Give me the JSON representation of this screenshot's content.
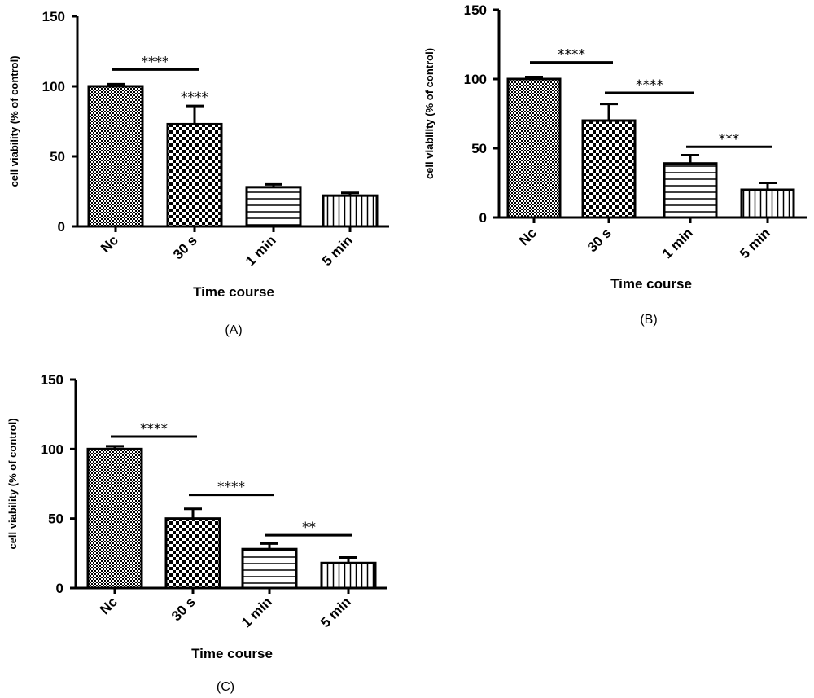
{
  "chart_data": [
    {
      "type": "bar",
      "panel": "(A)",
      "xlabel": "Time course",
      "ylabel": "cell viability (% of control)",
      "ylim": [
        0,
        150
      ],
      "yticks": [
        0,
        50,
        100,
        150
      ],
      "categories": [
        "Nc",
        "30 s",
        "1 min",
        "5 min"
      ],
      "values": [
        100,
        73,
        28,
        22
      ],
      "errors": [
        1.5,
        13,
        2,
        2
      ],
      "patterns": [
        "fine-check",
        "checker",
        "horizontal",
        "vertical"
      ],
      "significance": [
        {
          "text": "****",
          "from": 0,
          "to": 1,
          "y": 112
        },
        {
          "text": "****",
          "bar": 1,
          "y": 90
        }
      ]
    },
    {
      "type": "bar",
      "panel": "(B)",
      "xlabel": "Time course",
      "ylabel": "cell viability (% of control)",
      "ylim": [
        0,
        150
      ],
      "yticks": [
        0,
        50,
        100,
        150
      ],
      "categories": [
        "Nc",
        "30 s",
        "1 min",
        "5 min"
      ],
      "values": [
        100,
        70,
        39,
        20
      ],
      "errors": [
        1.5,
        12,
        6,
        5
      ],
      "patterns": [
        "fine-check",
        "checker",
        "horizontal",
        "vertical"
      ],
      "significance": [
        {
          "text": "****",
          "from": 0,
          "to": 1,
          "y": 112
        },
        {
          "text": "****",
          "from": 1,
          "to": 2,
          "y": 90
        },
        {
          "text": "***",
          "from": 2,
          "to": 3,
          "y": 51
        }
      ]
    },
    {
      "type": "bar",
      "panel": "(C)",
      "xlabel": "Time course",
      "ylabel": "cell viability (% of control)",
      "ylim": [
        0,
        150
      ],
      "yticks": [
        0,
        50,
        100,
        150
      ],
      "categories": [
        "Nc",
        "30 s",
        "1 min",
        "5 min"
      ],
      "values": [
        100,
        50,
        28,
        18
      ],
      "errors": [
        2,
        7,
        4,
        4
      ],
      "patterns": [
        "fine-check",
        "checker",
        "horizontal",
        "vertical"
      ],
      "significance": [
        {
          "text": "****",
          "from": 0,
          "to": 1,
          "y": 109
        },
        {
          "text": "****",
          "from": 1,
          "to": 2,
          "y": 67
        },
        {
          "text": "**",
          "from": 2,
          "to": 3,
          "y": 38
        }
      ]
    }
  ]
}
